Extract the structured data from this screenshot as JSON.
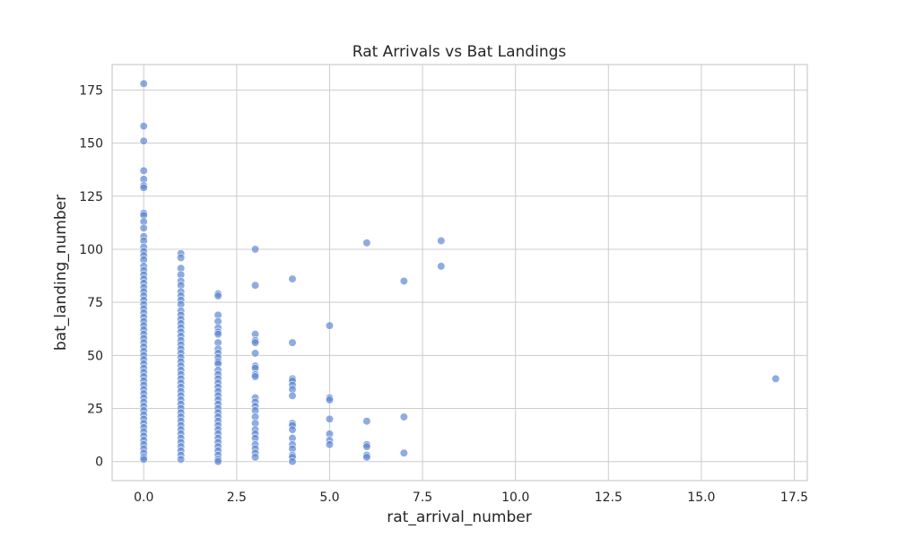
{
  "chart_data": {
    "type": "scatter",
    "title": "Rat Arrivals vs Bat Landings",
    "xlabel": "rat_arrival_number",
    "ylabel": "bat_landing_number",
    "xlim": [
      -0.85,
      17.85
    ],
    "ylim": [
      -9,
      187
    ],
    "xticks": [
      0,
      2.5,
      5,
      7.5,
      10,
      12.5,
      15,
      17.5
    ],
    "xtick_labels": [
      "0.0",
      "2.5",
      "5.0",
      "7.5",
      "10.0",
      "12.5",
      "15.0",
      "17.5"
    ],
    "yticks": [
      0,
      25,
      50,
      75,
      100,
      125,
      150,
      175
    ],
    "ytick_labels": [
      "0",
      "25",
      "50",
      "75",
      "100",
      "125",
      "150",
      "175"
    ],
    "grid": true,
    "marker_color": "#5a84d1",
    "series": [
      {
        "points": [
          [
            0,
            178
          ],
          [
            0,
            158
          ],
          [
            0,
            151
          ],
          [
            0,
            137
          ],
          [
            0,
            133
          ],
          [
            0,
            130
          ],
          [
            0,
            129
          ],
          [
            0,
            117
          ],
          [
            0,
            116
          ],
          [
            0,
            113
          ],
          [
            0,
            110
          ],
          [
            0,
            106
          ],
          [
            0,
            104
          ],
          [
            0,
            101
          ],
          [
            0,
            99
          ],
          [
            0,
            97
          ],
          [
            0,
            95
          ],
          [
            0,
            92
          ],
          [
            0,
            90
          ],
          [
            0,
            88
          ],
          [
            0,
            86
          ],
          [
            0,
            84
          ],
          [
            0,
            82
          ],
          [
            0,
            80
          ],
          [
            0,
            78
          ],
          [
            0,
            76
          ],
          [
            0,
            74
          ],
          [
            0,
            72
          ],
          [
            0,
            70
          ],
          [
            0,
            68
          ],
          [
            0,
            66
          ],
          [
            0,
            64
          ],
          [
            0,
            62
          ],
          [
            0,
            60
          ],
          [
            0,
            58
          ],
          [
            0,
            56
          ],
          [
            0,
            54
          ],
          [
            0,
            52
          ],
          [
            0,
            50
          ],
          [
            0,
            48
          ],
          [
            0,
            46
          ],
          [
            0,
            44
          ],
          [
            0,
            42
          ],
          [
            0,
            40
          ],
          [
            0,
            38
          ],
          [
            0,
            36
          ],
          [
            0,
            34
          ],
          [
            0,
            32
          ],
          [
            0,
            30
          ],
          [
            0,
            28
          ],
          [
            0,
            26
          ],
          [
            0,
            24
          ],
          [
            0,
            22
          ],
          [
            0,
            20
          ],
          [
            0,
            18
          ],
          [
            0,
            16
          ],
          [
            0,
            14
          ],
          [
            0,
            12
          ],
          [
            0,
            10
          ],
          [
            0,
            8
          ],
          [
            0,
            6
          ],
          [
            0,
            4
          ],
          [
            0,
            2
          ],
          [
            0,
            1
          ],
          [
            1,
            98
          ],
          [
            1,
            96
          ],
          [
            1,
            91
          ],
          [
            1,
            88
          ],
          [
            1,
            85
          ],
          [
            1,
            83
          ],
          [
            1,
            80
          ],
          [
            1,
            78
          ],
          [
            1,
            76
          ],
          [
            1,
            74
          ],
          [
            1,
            71
          ],
          [
            1,
            69
          ],
          [
            1,
            67
          ],
          [
            1,
            65
          ],
          [
            1,
            63
          ],
          [
            1,
            61
          ],
          [
            1,
            59
          ],
          [
            1,
            57
          ],
          [
            1,
            55
          ],
          [
            1,
            53
          ],
          [
            1,
            51
          ],
          [
            1,
            49
          ],
          [
            1,
            47
          ],
          [
            1,
            45
          ],
          [
            1,
            43
          ],
          [
            1,
            41
          ],
          [
            1,
            39
          ],
          [
            1,
            37
          ],
          [
            1,
            35
          ],
          [
            1,
            33
          ],
          [
            1,
            31
          ],
          [
            1,
            29
          ],
          [
            1,
            27
          ],
          [
            1,
            25
          ],
          [
            1,
            23
          ],
          [
            1,
            21
          ],
          [
            1,
            19
          ],
          [
            1,
            17
          ],
          [
            1,
            15
          ],
          [
            1,
            13
          ],
          [
            1,
            11
          ],
          [
            1,
            9
          ],
          [
            1,
            7
          ],
          [
            1,
            5
          ],
          [
            1,
            3
          ],
          [
            1,
            1
          ],
          [
            2,
            79
          ],
          [
            2,
            78
          ],
          [
            2,
            69
          ],
          [
            2,
            66
          ],
          [
            2,
            63
          ],
          [
            2,
            61
          ],
          [
            2,
            60
          ],
          [
            2,
            56
          ],
          [
            2,
            53
          ],
          [
            2,
            51
          ],
          [
            2,
            49
          ],
          [
            2,
            47
          ],
          [
            2,
            46
          ],
          [
            2,
            43
          ],
          [
            2,
            41
          ],
          [
            2,
            39
          ],
          [
            2,
            37
          ],
          [
            2,
            35
          ],
          [
            2,
            33
          ],
          [
            2,
            31
          ],
          [
            2,
            29
          ],
          [
            2,
            27
          ],
          [
            2,
            25
          ],
          [
            2,
            23
          ],
          [
            2,
            21
          ],
          [
            2,
            19
          ],
          [
            2,
            17
          ],
          [
            2,
            15
          ],
          [
            2,
            13
          ],
          [
            2,
            11
          ],
          [
            2,
            9
          ],
          [
            2,
            7
          ],
          [
            2,
            5
          ],
          [
            2,
            3
          ],
          [
            2,
            1
          ],
          [
            2,
            0
          ],
          [
            3,
            100
          ],
          [
            3,
            83
          ],
          [
            3,
            60
          ],
          [
            3,
            57
          ],
          [
            3,
            56
          ],
          [
            3,
            51
          ],
          [
            3,
            45
          ],
          [
            3,
            44
          ],
          [
            3,
            41
          ],
          [
            3,
            40
          ],
          [
            3,
            30
          ],
          [
            3,
            28
          ],
          [
            3,
            26
          ],
          [
            3,
            24
          ],
          [
            3,
            21
          ],
          [
            3,
            18
          ],
          [
            3,
            15
          ],
          [
            3,
            13
          ],
          [
            3,
            11
          ],
          [
            3,
            8
          ],
          [
            3,
            6
          ],
          [
            3,
            4
          ],
          [
            3,
            2
          ],
          [
            4,
            86
          ],
          [
            4,
            56
          ],
          [
            4,
            39
          ],
          [
            4,
            38
          ],
          [
            4,
            36
          ],
          [
            4,
            34
          ],
          [
            4,
            31
          ],
          [
            4,
            18
          ],
          [
            4,
            17
          ],
          [
            4,
            15
          ],
          [
            4,
            11
          ],
          [
            4,
            8
          ],
          [
            4,
            6
          ],
          [
            4,
            3
          ],
          [
            4,
            2
          ],
          [
            4,
            0
          ],
          [
            5,
            64
          ],
          [
            5,
            30
          ],
          [
            5,
            29
          ],
          [
            5,
            20
          ],
          [
            5,
            13
          ],
          [
            5,
            10
          ],
          [
            5,
            8
          ],
          [
            6,
            103
          ],
          [
            6,
            19
          ],
          [
            6,
            8
          ],
          [
            6,
            7
          ],
          [
            6,
            3
          ],
          [
            6,
            2
          ],
          [
            7,
            85
          ],
          [
            7,
            21
          ],
          [
            7,
            4
          ],
          [
            8,
            104
          ],
          [
            8,
            92
          ],
          [
            17,
            39
          ]
        ]
      }
    ]
  }
}
